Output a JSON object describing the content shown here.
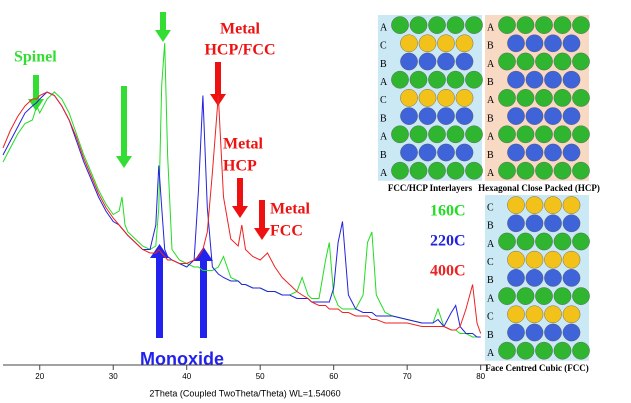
{
  "chart_data": {
    "type": "line",
    "x_label": "2Theta (Coupled TwoTheta/Theta) WL=1.54060",
    "annotations": [
      "Spinel",
      "Metal",
      "HCP/FCC",
      "Metal",
      "HCP",
      "Metal",
      "FCC",
      "Monoxide"
    ],
    "xlim": [
      15,
      81
    ],
    "xticks": [
      20,
      30,
      40,
      50,
      60,
      70,
      80
    ],
    "ylim": [
      0,
      100
    ],
    "legend": "right",
    "x": [
      15,
      16,
      17,
      18,
      19,
      19.6,
      20,
      21,
      22,
      23,
      24,
      25,
      26,
      27,
      28,
      29,
      30,
      30.8,
      31.2,
      31.6,
      32,
      33,
      34,
      35,
      35.8,
      36.2,
      36.6,
      37,
      37.4,
      38,
      39,
      40,
      41,
      41.6,
      42.2,
      42.8,
      43.5,
      44.3,
      45,
      46,
      47,
      47.5,
      48,
      49,
      50,
      51,
      52,
      53,
      54,
      55,
      55.7,
      56.5,
      57,
      58,
      58.9,
      59.4,
      60,
      60.6,
      61.2,
      62,
      63,
      64,
      64.6,
      65.2,
      65.8,
      67,
      68,
      70,
      72,
      73.5,
      74.2,
      75,
      76,
      76.6,
      77.2,
      78,
      78.9,
      79.5,
      80
    ],
    "series": [
      {
        "name": "160C",
        "color": "#22dd22",
        "values": [
          58,
          62,
          66,
          69,
          70,
          74,
          72,
          76,
          78,
          76,
          72,
          66,
          60,
          55,
          50,
          46,
          43,
          44,
          48,
          40,
          38,
          36,
          34,
          33,
          34,
          45,
          80,
          92,
          60,
          33,
          30,
          29,
          28,
          28,
          27,
          27,
          27,
          28,
          31,
          25,
          24,
          23,
          23,
          22,
          22,
          21,
          21,
          20,
          20,
          21,
          25,
          20,
          19,
          19,
          30,
          35,
          20,
          17,
          16,
          16,
          16,
          20,
          35,
          38,
          20,
          15,
          14,
          13,
          12,
          12,
          16,
          11,
          10,
          10,
          9,
          9,
          8,
          8,
          8
        ]
      },
      {
        "name": "220C",
        "color": "#2222dd",
        "values": [
          60,
          64,
          68,
          72,
          74,
          75,
          76,
          78,
          77,
          74,
          70,
          64,
          58,
          53,
          48,
          44,
          41,
          40,
          39,
          38,
          37,
          35,
          33,
          33,
          40,
          57,
          45,
          33,
          31,
          30,
          29,
          28,
          30,
          50,
          77,
          45,
          28,
          26,
          25,
          24,
          24,
          23,
          23,
          22,
          22,
          21,
          21,
          20,
          20,
          19,
          19,
          19,
          18,
          18,
          18,
          18,
          22,
          35,
          41,
          20,
          16,
          15,
          15,
          15,
          14,
          14,
          14,
          13,
          12,
          12,
          13,
          11,
          15,
          17,
          11,
          9,
          9,
          8,
          8
        ]
      },
      {
        "name": "400C",
        "color": "#ee2222",
        "values": [
          62,
          67,
          71,
          74,
          76,
          76,
          77,
          78,
          77,
          74,
          70,
          65,
          59,
          54,
          49,
          45,
          42,
          40,
          39,
          38,
          37,
          35,
          33,
          32,
          32,
          33,
          32,
          31,
          30,
          30,
          29,
          29,
          30,
          31,
          33,
          38,
          55,
          77,
          48,
          36,
          34,
          40,
          33,
          31,
          30,
          32,
          28,
          25,
          23,
          21,
          20,
          19,
          18,
          17,
          17,
          16,
          16,
          16,
          15,
          15,
          14,
          14,
          14,
          13,
          13,
          12,
          12,
          12,
          11,
          11,
          11,
          11,
          10,
          10,
          11,
          16,
          23,
          12,
          9
        ]
      }
    ]
  },
  "panels": [
    {
      "layers": [
        "A",
        "C",
        "B",
        "A",
        "C",
        "B",
        "A",
        "B",
        "A"
      ],
      "caption": "FCC/HCP Interlayers"
    },
    {
      "layers": [
        "A",
        "B",
        "A",
        "B",
        "A",
        "B",
        "A",
        "B",
        "A"
      ],
      "caption": "Hexagonal Close Packed (HCP)"
    },
    {
      "layers": [
        "C",
        "B",
        "A",
        "C",
        "B",
        "A",
        "C",
        "B",
        "A"
      ],
      "caption": "Face Centred Cubic (FCC)"
    }
  ]
}
